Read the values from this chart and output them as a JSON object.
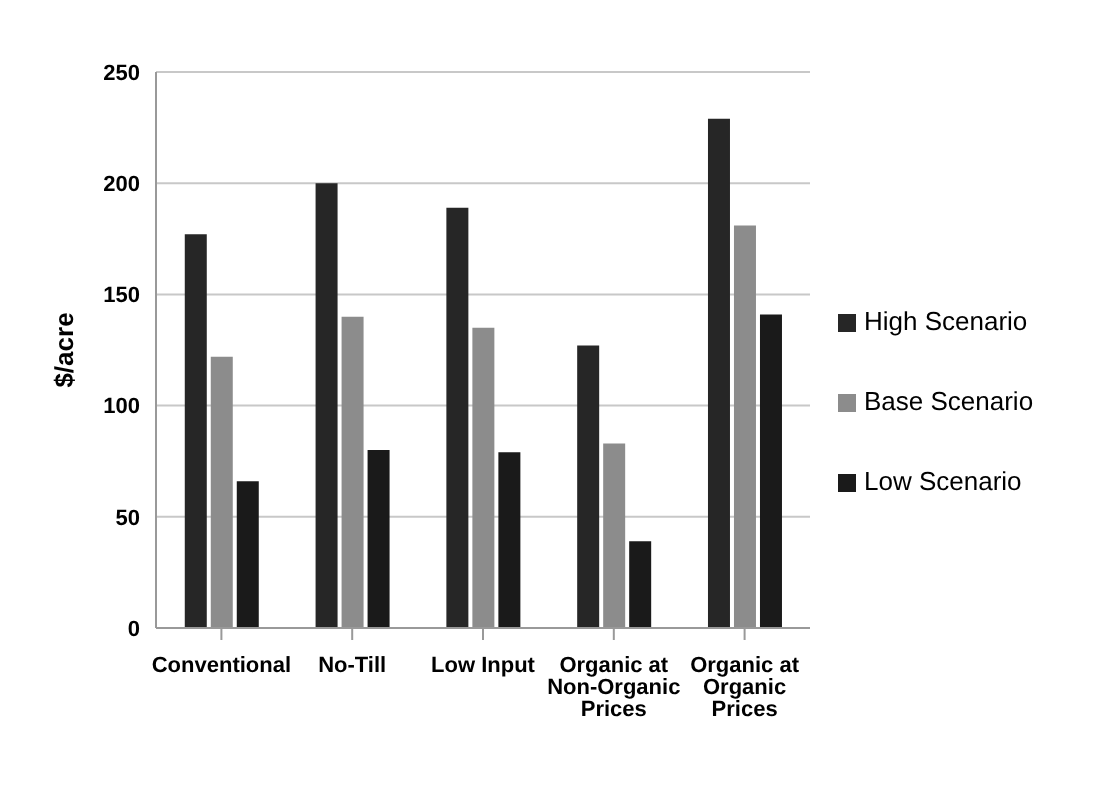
{
  "chart_data": {
    "type": "bar",
    "ylabel": "$/acre",
    "categories": [
      "Conventional",
      "No-Till",
      "Low Input",
      "Organic at Non-Organic Prices",
      "Organic at Organic Prices"
    ],
    "series": [
      {
        "name": "High Scenario",
        "color": "#262626",
        "values": [
          177,
          200,
          189,
          127,
          229
        ]
      },
      {
        "name": "Base Scenario",
        "color": "#8c8c8c",
        "values": [
          122,
          140,
          135,
          83,
          181
        ]
      },
      {
        "name": "Low Scenario",
        "color": "#1a1a1a",
        "values": [
          66,
          80,
          79,
          39,
          141
        ]
      }
    ],
    "ylim": [
      0,
      250
    ],
    "yticks": [
      0,
      50,
      100,
      150,
      200,
      250
    ],
    "grid": "y",
    "legend": "right"
  }
}
